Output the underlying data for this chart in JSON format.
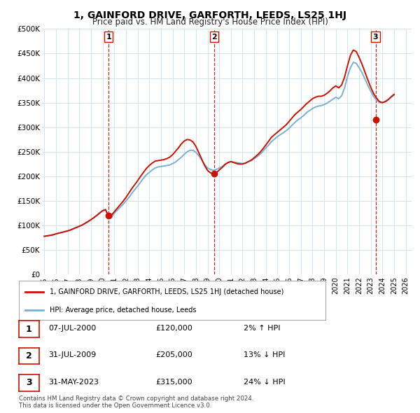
{
  "title": "1, GAINFORD DRIVE, GARFORTH, LEEDS, LS25 1HJ",
  "subtitle": "Price paid vs. HM Land Registry's House Price Index (HPI)",
  "ylabel_ticks": [
    "£0",
    "£50K",
    "£100K",
    "£150K",
    "£200K",
    "£250K",
    "£300K",
    "£350K",
    "£400K",
    "£450K",
    "£500K"
  ],
  "ytick_values": [
    0,
    50000,
    100000,
    150000,
    200000,
    250000,
    300000,
    350000,
    400000,
    450000,
    500000
  ],
  "ylim": [
    0,
    500000
  ],
  "xmin": 1994.8,
  "xmax": 2026.5,
  "xticks": [
    1995,
    1996,
    1997,
    1998,
    1999,
    2000,
    2001,
    2002,
    2003,
    2004,
    2005,
    2006,
    2007,
    2008,
    2009,
    2010,
    2011,
    2012,
    2013,
    2014,
    2015,
    2016,
    2017,
    2018,
    2019,
    2020,
    2021,
    2022,
    2023,
    2024,
    2025,
    2026
  ],
  "sale_dates": [
    2000.52,
    2009.58,
    2023.41
  ],
  "sale_prices": [
    120000,
    205000,
    315000
  ],
  "sale_labels": [
    "1",
    "2",
    "3"
  ],
  "hpi_color": "#7ab0d4",
  "price_color": "#cc1100",
  "vline_color": "#cc1100",
  "background_color": "#ffffff",
  "grid_color": "#d0e4f0",
  "legend_label_red": "1, GAINFORD DRIVE, GARFORTH, LEEDS, LS25 1HJ (detached house)",
  "legend_label_blue": "HPI: Average price, detached house, Leeds",
  "table_entries": [
    {
      "label": "1",
      "date": "07-JUL-2000",
      "price": "£120,000",
      "hpi": "2% ↑ HPI"
    },
    {
      "label": "2",
      "date": "31-JUL-2009",
      "price": "£205,000",
      "hpi": "13% ↓ HPI"
    },
    {
      "label": "3",
      "date": "31-MAY-2023",
      "price": "£315,000",
      "hpi": "24% ↓ HPI"
    }
  ],
  "footer_text": "Contains HM Land Registry data © Crown copyright and database right 2024.\nThis data is licensed under the Open Government Licence v3.0.",
  "hpi_y": [
    78000,
    79000,
    80000,
    81000,
    83000,
    84500,
    86000,
    87500,
    89000,
    91000,
    93500,
    96000,
    98500,
    101000,
    104500,
    108000,
    112000,
    116000,
    120500,
    125500,
    130000,
    133000,
    114000,
    116000,
    125000,
    131000,
    137000,
    143000,
    150000,
    157000,
    165000,
    173000,
    180000,
    188000,
    196000,
    203000,
    208000,
    213000,
    217000,
    219000,
    220000,
    221000,
    222000,
    223000,
    226000,
    229000,
    234000,
    239000,
    245000,
    250000,
    253000,
    253000,
    249000,
    242000,
    233000,
    224000,
    217000,
    214000,
    212000,
    214000,
    217000,
    220000,
    225000,
    228000,
    230000,
    229000,
    228000,
    227000,
    226000,
    227000,
    230000,
    232000,
    236000,
    240000,
    245000,
    251000,
    258000,
    264000,
    271000,
    276000,
    281000,
    285000,
    289000,
    293000,
    298000,
    304000,
    310000,
    315000,
    319000,
    324000,
    330000,
    334000,
    338000,
    341000,
    343000,
    344000,
    346000,
    349000,
    353000,
    357000,
    361000,
    358000,
    364000,
    380000,
    403000,
    421000,
    432000,
    430000,
    421000,
    411000,
    398000,
    385000,
    373000,
    362000,
    355000,
    350000,
    350000,
    353000,
    357000,
    361000,
    365000
  ],
  "price_y": [
    78000,
    79000,
    80000,
    81000,
    83000,
    84500,
    86000,
    87500,
    89000,
    91000,
    93500,
    96000,
    98500,
    101000,
    104500,
    108000,
    112000,
    116000,
    120500,
    125500,
    130000,
    132000,
    120000,
    121000,
    128000,
    135000,
    142000,
    149000,
    157000,
    166000,
    175000,
    183000,
    191000,
    200000,
    208000,
    216000,
    222000,
    227000,
    231000,
    232000,
    233000,
    234000,
    236000,
    239000,
    244000,
    251000,
    258000,
    266000,
    272000,
    275000,
    274000,
    270000,
    261000,
    248000,
    235000,
    222000,
    212000,
    207000,
    205000,
    207000,
    213000,
    218000,
    224000,
    228000,
    230000,
    228000,
    226000,
    225000,
    225000,
    227000,
    230000,
    233000,
    238000,
    243000,
    249000,
    256000,
    264000,
    272000,
    280000,
    285000,
    290000,
    295000,
    300000,
    305000,
    312000,
    319000,
    326000,
    331000,
    336000,
    342000,
    348000,
    353000,
    358000,
    361000,
    363000,
    363000,
    365000,
    369000,
    374000,
    380000,
    384000,
    380000,
    386000,
    402000,
    425000,
    446000,
    457000,
    454000,
    442000,
    428000,
    412000,
    396000,
    381000,
    368000,
    359000,
    352000,
    350000,
    352000,
    356000,
    362000,
    367000
  ],
  "hpi_x": [
    1995.0,
    1995.25,
    1995.5,
    1995.75,
    1996.0,
    1996.25,
    1996.5,
    1996.75,
    1997.0,
    1997.25,
    1997.5,
    1997.75,
    1998.0,
    1998.25,
    1998.5,
    1998.75,
    1999.0,
    1999.25,
    1999.5,
    1999.75,
    2000.0,
    2000.25,
    2000.5,
    2000.75,
    2001.0,
    2001.25,
    2001.5,
    2001.75,
    2002.0,
    2002.25,
    2002.5,
    2002.75,
    2003.0,
    2003.25,
    2003.5,
    2003.75,
    2004.0,
    2004.25,
    2004.5,
    2004.75,
    2005.0,
    2005.25,
    2005.5,
    2005.75,
    2006.0,
    2006.25,
    2006.5,
    2006.75,
    2007.0,
    2007.25,
    2007.5,
    2007.75,
    2008.0,
    2008.25,
    2008.5,
    2008.75,
    2009.0,
    2009.25,
    2009.5,
    2009.75,
    2010.0,
    2010.25,
    2010.5,
    2010.75,
    2011.0,
    2011.25,
    2011.5,
    2011.75,
    2012.0,
    2012.25,
    2012.5,
    2012.75,
    2013.0,
    2013.25,
    2013.5,
    2013.75,
    2014.0,
    2014.25,
    2014.5,
    2014.75,
    2015.0,
    2015.25,
    2015.5,
    2015.75,
    2016.0,
    2016.25,
    2016.5,
    2016.75,
    2017.0,
    2017.25,
    2017.5,
    2017.75,
    2018.0,
    2018.25,
    2018.5,
    2018.75,
    2019.0,
    2019.25,
    2019.5,
    2019.75,
    2020.0,
    2020.25,
    2020.5,
    2020.75,
    2021.0,
    2021.25,
    2021.5,
    2021.75,
    2022.0,
    2022.25,
    2022.5,
    2022.75,
    2023.0,
    2023.25,
    2023.5,
    2023.75,
    2024.0,
    2024.25,
    2024.5,
    2024.75,
    2025.0
  ]
}
